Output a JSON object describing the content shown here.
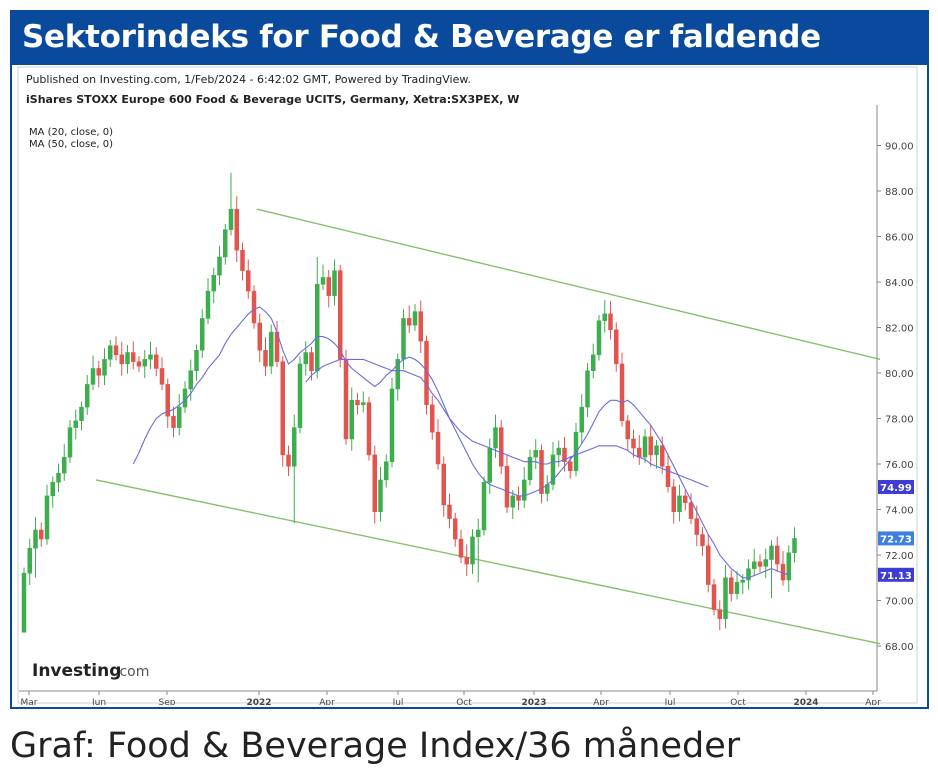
{
  "banner": {
    "title": "Sektorindeks for Food & Beverage er faldende",
    "color": "#0a4a9c"
  },
  "chart_header": {
    "published": "Published on Investing.com, 1/Feb/2024 - 6:42:02 GMT, Powered by TradingView.",
    "instrument": "iShares STOXX Europe 600 Food & Beverage UCITS, Germany, Xetra:SX3PEX, W",
    "ma20_label": "MA (20, close, 0)",
    "ma50_label": "MA (50, close, 0)"
  },
  "logo": {
    "text": "Investing",
    "suffix": ".com"
  },
  "caption": "Graf: Food & Beverage Index/36 måneder",
  "chart_data": {
    "type": "candlestick",
    "x_tick_labels": [
      "Mar",
      "Jun",
      "Sep",
      "2022",
      "Apr",
      "Jul",
      "Oct",
      "2023",
      "Apr",
      "Jul",
      "Oct",
      "2024",
      "Apr"
    ],
    "y_tick_labels": [
      "68.00",
      "70.00",
      "72.00",
      "74.00",
      "76.00",
      "78.00",
      "80.00",
      "82.00",
      "84.00",
      "86.00",
      "88.00",
      "90.00"
    ],
    "ylim": [
      66,
      91
    ],
    "price_badges": [
      {
        "label": "74.99",
        "value": 74.99,
        "color": "#3d3dd6"
      },
      {
        "label": "72.73",
        "value": 72.73,
        "color": "#3f7fe0"
      },
      {
        "label": "71.13",
        "value": 71.13,
        "color": "#3d3dd6"
      }
    ],
    "colors": {
      "up": "#3cae4e",
      "down": "#e2544e",
      "ma": "#6b6bdf",
      "channel": "#86c06a"
    },
    "channel_upper": {
      "from": 87.2,
      "to": 80.6
    },
    "channel_lower": {
      "from": 75.3,
      "to": 68.1
    },
    "weekly_close": [
      71.2,
      72.3,
      73.1,
      72.7,
      74.6,
      75.2,
      75.6,
      76.3,
      77.6,
      77.9,
      78.5,
      79.5,
      80.2,
      79.9,
      80.6,
      81.2,
      80.8,
      80.4,
      80.9,
      80.5,
      80.3,
      80.6,
      80.8,
      80.2,
      79.5,
      78.1,
      77.6,
      78.5,
      79.3,
      80.1,
      81.0,
      82.4,
      83.6,
      84.3,
      85.1,
      86.3,
      87.2,
      85.4,
      84.5,
      83.6,
      82.2,
      81.0,
      80.3,
      81.8,
      80.5,
      76.4,
      75.9,
      77.6,
      80.4,
      80.9,
      80.1,
      83.9,
      84.2,
      83.4,
      84.5,
      80.6,
      77.1,
      78.8,
      78.6,
      78.7,
      76.4,
      73.9,
      75.3,
      76.1,
      79.3,
      80.6,
      82.4,
      82.1,
      82.7,
      81.4,
      78.6,
      77.4,
      76.0,
      74.2,
      73.6,
      72.7,
      71.9,
      71.6,
      72.8,
      73.1,
      75.2,
      76.7,
      77.6,
      75.9,
      74.1,
      74.6,
      74.4,
      75.3,
      76.3,
      76.6,
      74.7,
      75.1,
      76.4,
      76.7,
      76.1,
      75.7,
      77.4,
      78.5,
      80.1,
      80.8,
      82.3,
      82.6,
      81.9,
      80.4,
      77.9,
      77.1,
      76.7,
      76.3,
      77.2,
      76.4,
      76.8,
      75.9,
      75.0,
      73.9,
      74.6,
      74.3,
      73.6,
      72.9,
      72.4,
      70.7,
      69.6,
      69.2,
      71.0,
      70.3,
      70.8,
      70.9,
      71.4,
      71.7,
      71.5,
      71.8,
      72.4,
      71.6,
      70.9,
      72.1,
      72.73
    ],
    "ma20": [
      null,
      null,
      null,
      null,
      null,
      null,
      null,
      null,
      null,
      null,
      null,
      null,
      null,
      null,
      null,
      null,
      null,
      null,
      null,
      76.0,
      76.5,
      77.1,
      77.6,
      78.0,
      78.2,
      78.3,
      78.4,
      78.6,
      78.8,
      79.1,
      79.5,
      79.8,
      80.2,
      80.5,
      80.8,
      81.3,
      81.7,
      82.0,
      82.3,
      82.6,
      82.8,
      82.9,
      82.7,
      82.4,
      81.8,
      81.0,
      80.4,
      80.6,
      80.9,
      81.1,
      81.3,
      81.6,
      81.6,
      81.5,
      81.3,
      81.0,
      80.5,
      80.2,
      80.0,
      79.8,
      79.6,
      79.4,
      79.6,
      79.9,
      80.1,
      80.4,
      80.6,
      80.7,
      80.6,
      80.4,
      80.1,
      79.7,
      79.2,
      78.6,
      78.0,
      77.5,
      77.0,
      76.5,
      76.0,
      75.6,
      75.3,
      75.1,
      75.0,
      74.9,
      74.8,
      74.7,
      74.6,
      74.6,
      74.7,
      74.8,
      74.9,
      75.1,
      75.3,
      75.6,
      75.9,
      76.2,
      76.5,
      76.9,
      77.3,
      77.8,
      78.3,
      78.6,
      78.8,
      78.8,
      78.7,
      78.8,
      78.6,
      78.3,
      78.0,
      77.7,
      77.3,
      76.9,
      76.4,
      75.9,
      75.4,
      74.9,
      74.4,
      73.9,
      73.4,
      72.9,
      72.5,
      72.0,
      71.7,
      71.4,
      71.2,
      71.0,
      71.0,
      71.1,
      71.2,
      71.3,
      71.4,
      71.3,
      71.2,
      71.13,
      null
    ],
    "ma50": [
      null,
      null,
      null,
      null,
      null,
      null,
      null,
      null,
      null,
      null,
      null,
      null,
      null,
      null,
      null,
      null,
      null,
      null,
      null,
      null,
      null,
      null,
      null,
      null,
      null,
      null,
      null,
      null,
      null,
      null,
      null,
      null,
      null,
      null,
      null,
      null,
      null,
      null,
      null,
      null,
      null,
      null,
      null,
      null,
      null,
      null,
      null,
      null,
      null,
      79.6,
      79.9,
      80.1,
      80.3,
      80.4,
      80.5,
      80.6,
      80.6,
      80.6,
      80.6,
      80.6,
      80.5,
      80.4,
      80.3,
      80.2,
      80.1,
      80.1,
      80.1,
      80.0,
      79.9,
      79.8,
      79.5,
      79.1,
      78.8,
      78.4,
      78.0,
      77.7,
      77.4,
      77.2,
      77.0,
      76.9,
      76.8,
      76.7,
      76.6,
      76.5,
      76.4,
      76.3,
      76.2,
      76.1,
      76.1,
      76.1,
      76.0,
      76.0,
      76.1,
      76.1,
      76.2,
      76.3,
      76.4,
      76.5,
      76.6,
      76.7,
      76.8,
      76.8,
      76.8,
      76.8,
      76.7,
      76.6,
      76.4,
      76.3,
      76.2,
      76.0,
      75.9,
      75.8,
      75.7,
      75.6,
      75.5,
      75.4,
      75.3,
      75.2,
      75.1,
      74.99,
      null,
      null,
      null,
      null,
      null,
      null,
      null,
      null,
      null,
      null,
      null,
      null,
      null,
      null,
      null
    ]
  }
}
